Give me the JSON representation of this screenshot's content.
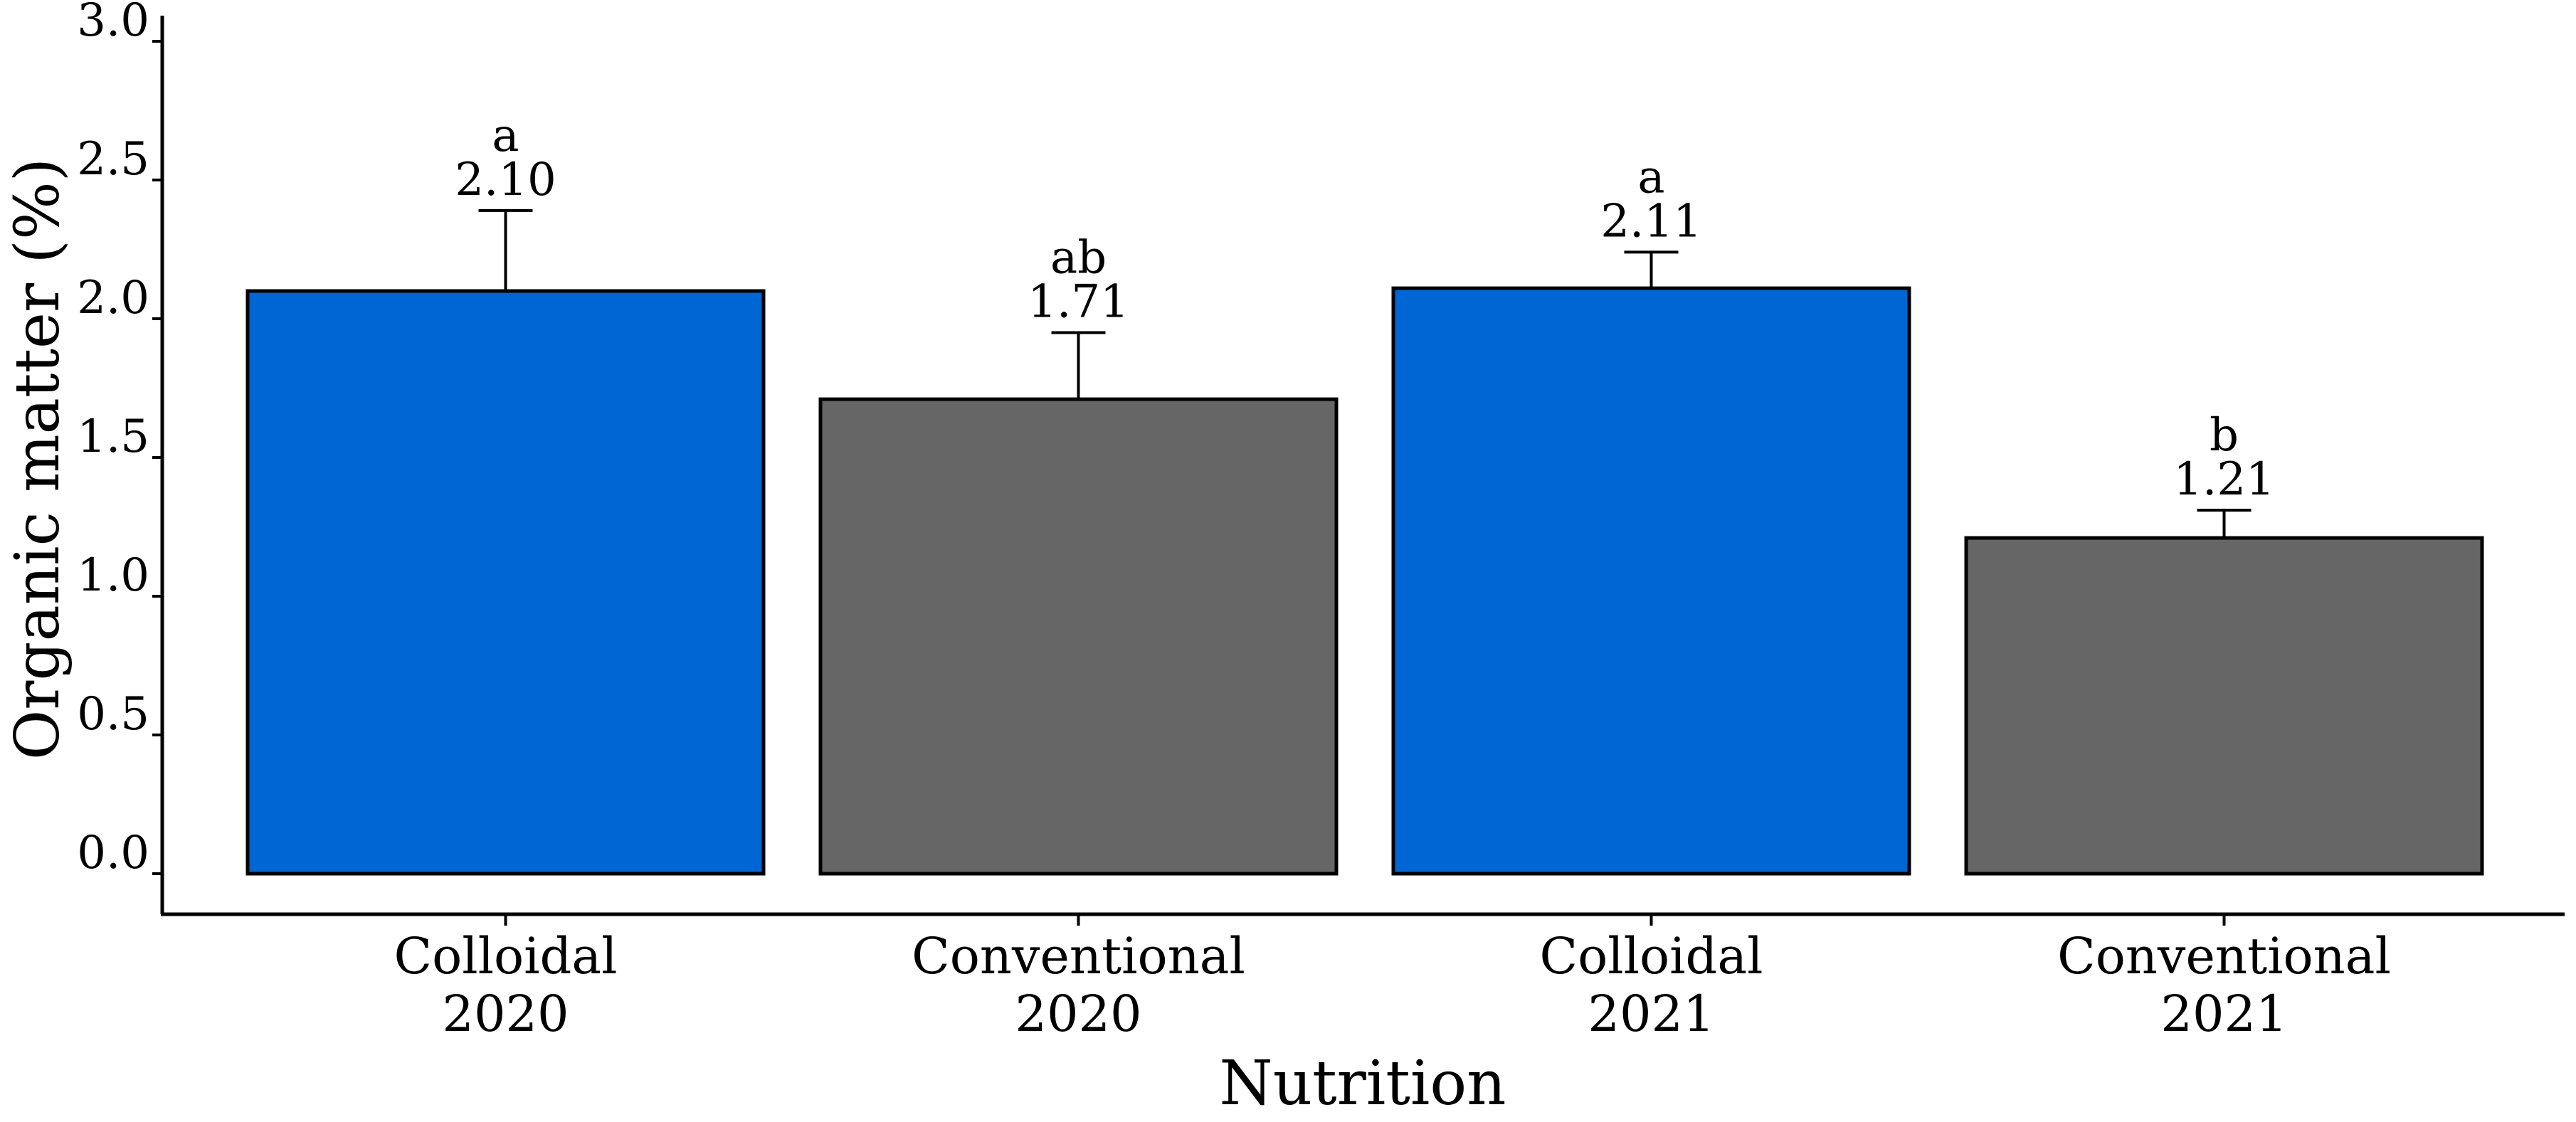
{
  "chart_data": {
    "type": "bar",
    "categories": [
      [
        "Colloidal",
        "2020"
      ],
      [
        "Conventional",
        "2020"
      ],
      [
        "Colloidal",
        "2021"
      ],
      [
        "Conventional",
        "2021"
      ]
    ],
    "values": [
      2.1,
      1.71,
      2.11,
      1.21
    ],
    "value_labels": [
      "2.10",
      "1.71",
      "2.11",
      "1.21"
    ],
    "error_upper": [
      2.39,
      1.95,
      2.24,
      1.31
    ],
    "significance_letters": [
      "a",
      "ab",
      "a",
      "b"
    ],
    "bar_colors": [
      "#0066d3",
      "#666666",
      "#0066d3",
      "#666666"
    ],
    "xlabel": "Nutrition",
    "ylabel": "Organic matter (%)",
    "ylim": [
      0,
      3.0
    ],
    "yticks": [
      "0.0",
      "0.5",
      "1.0",
      "1.5",
      "2.0",
      "2.5",
      "3.0"
    ],
    "grid": false
  }
}
